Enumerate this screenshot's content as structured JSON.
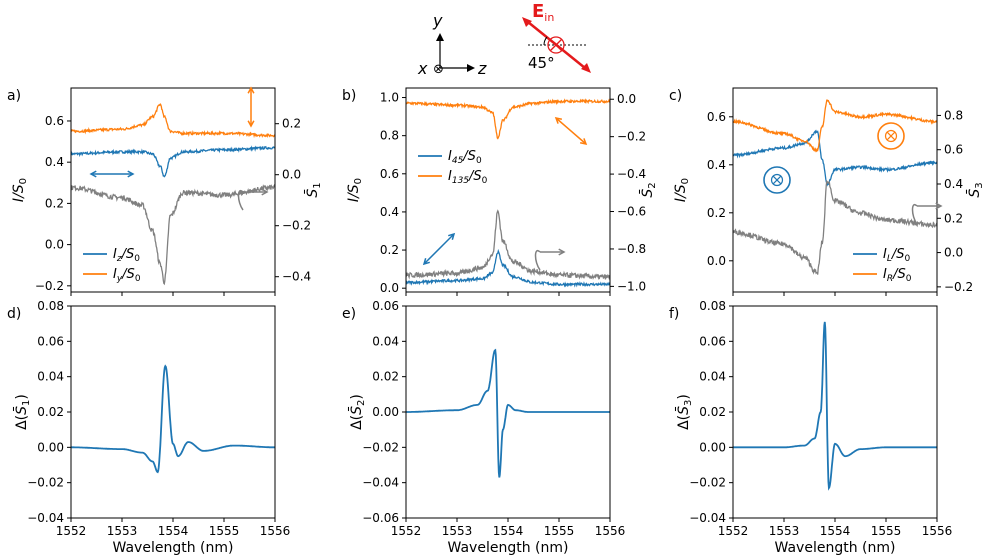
{
  "colors": {
    "blue": "#1f77b4",
    "orange": "#ff7f0e",
    "gray": "#808080",
    "red": "#e41a1c",
    "black": "#000000"
  },
  "header": {
    "y_axis": "y",
    "x_axis": "x",
    "z_axis": "z",
    "x_symbol": "⊗",
    "field_label": "E",
    "field_sub": "in",
    "angle_label": "45°"
  },
  "chart_data": [
    {
      "id": "a",
      "panel_label": "a)",
      "type": "line",
      "x": [
        1552,
        1553,
        1553.4,
        1553.6,
        1553.75,
        1553.83,
        1553.95,
        1554.2,
        1555,
        1556
      ],
      "xlim": [
        1552,
        1556
      ],
      "ylim": [
        -0.23,
        0.76
      ],
      "ylabel": "I/S0",
      "yticks": [
        "−0.2",
        "0.0",
        "0.2",
        "0.4",
        "0.6"
      ],
      "ytick_values": [
        -0.2,
        0,
        0.2,
        0.4,
        0.6
      ],
      "y2lim": [
        -0.46,
        0.34
      ],
      "y2label": "S̄1",
      "y2ticks": [
        "−0.4",
        "−0.2",
        "0.0",
        "0.2"
      ],
      "y2tick_values": [
        -0.4,
        -0.2,
        0,
        0.2
      ],
      "series": [
        {
          "name": "Iz/S0",
          "color": "blue",
          "axis": "left",
          "values": [
            0.44,
            0.45,
            0.45,
            0.44,
            0.38,
            0.33,
            0.42,
            0.45,
            0.46,
            0.47
          ]
        },
        {
          "name": "Iy/S0",
          "color": "orange",
          "axis": "left",
          "values": [
            0.55,
            0.56,
            0.58,
            0.62,
            0.68,
            0.62,
            0.55,
            0.54,
            0.54,
            0.53
          ]
        },
        {
          "name": "S̄1",
          "color": "gray",
          "axis": "right",
          "values": [
            -0.05,
            -0.09,
            -0.12,
            -0.22,
            -0.35,
            -0.42,
            -0.16,
            -0.07,
            -0.08,
            -0.05
          ]
        }
      ],
      "legend": [
        {
          "main": "I",
          "sub": "z",
          "tail": "/S",
          "sub2": "0",
          "color": "blue"
        },
        {
          "main": "I",
          "sub": "y",
          "tail": "/S",
          "sub2": "0",
          "color": "orange"
        }
      ]
    },
    {
      "id": "b",
      "panel_label": "b)",
      "type": "line",
      "x": [
        1552,
        1553,
        1553.5,
        1553.7,
        1553.8,
        1553.9,
        1554.1,
        1554.5,
        1555,
        1556
      ],
      "xlim": [
        1552,
        1556
      ],
      "ylim": [
        -0.02,
        1.05
      ],
      "ylabel": "I/S0",
      "yticks": [
        "0.0",
        "0.2",
        "0.4",
        "0.6",
        "0.8",
        "1.0"
      ],
      "ytick_values": [
        0,
        0.2,
        0.4,
        0.6,
        0.8,
        1.0
      ],
      "y2lim": [
        -1.03,
        0.06
      ],
      "y2label": "S̄2",
      "y2ticks": [
        "−1.0",
        "−0.8",
        "−0.6",
        "−0.4",
        "−0.2",
        "0.0"
      ],
      "y2tick_values": [
        -1,
        -0.8,
        -0.6,
        -0.4,
        -0.2,
        0
      ],
      "series": [
        {
          "name": "I45/S0",
          "color": "blue",
          "axis": "left",
          "values": [
            0.03,
            0.04,
            0.05,
            0.08,
            0.19,
            0.12,
            0.06,
            0.03,
            0.02,
            0.02
          ]
        },
        {
          "name": "I135/S0",
          "color": "orange",
          "axis": "left",
          "values": [
            0.97,
            0.96,
            0.95,
            0.92,
            0.79,
            0.88,
            0.95,
            0.97,
            0.98,
            0.98
          ]
        },
        {
          "name": "S̄2",
          "color": "gray",
          "axis": "right",
          "values": [
            -0.94,
            -0.93,
            -0.9,
            -0.83,
            -0.6,
            -0.76,
            -0.87,
            -0.92,
            -0.94,
            -0.95
          ]
        }
      ],
      "legend": [
        {
          "main": "I",
          "sub": "45",
          "tail": "/S",
          "sub2": "0",
          "color": "blue"
        },
        {
          "main": "I",
          "sub": "135",
          "tail": "/S",
          "sub2": "0",
          "color": "orange"
        }
      ]
    },
    {
      "id": "c",
      "panel_label": "c)",
      "type": "line",
      "x": [
        1552,
        1553,
        1553.4,
        1553.65,
        1553.75,
        1553.85,
        1554,
        1554.5,
        1555,
        1556
      ],
      "xlim": [
        1552,
        1556
      ],
      "ylim": [
        -0.13,
        0.72
      ],
      "ylabel": "I/S0",
      "yticks": [
        "0.0",
        "0.2",
        "0.4",
        "0.6"
      ],
      "ytick_values": [
        0,
        0.2,
        0.4,
        0.6
      ],
      "y2lim": [
        -0.23,
        0.96
      ],
      "y2label": "S̄3",
      "y2ticks": [
        "−0.2",
        "0.0",
        "0.2",
        "0.4",
        "0.6",
        "0.8"
      ],
      "y2tick_values": [
        -0.2,
        0,
        0.2,
        0.4,
        0.6,
        0.8
      ],
      "series": [
        {
          "name": "IL/S0",
          "color": "blue",
          "axis": "left",
          "values": [
            0.44,
            0.47,
            0.49,
            0.54,
            0.42,
            0.32,
            0.38,
            0.39,
            0.38,
            0.41
          ]
        },
        {
          "name": "IR/S0",
          "color": "orange",
          "axis": "left",
          "values": [
            0.58,
            0.53,
            0.5,
            0.46,
            0.56,
            0.67,
            0.62,
            0.6,
            0.61,
            0.58
          ]
        },
        {
          "name": "S̄3",
          "color": "gray",
          "axis": "right",
          "values": [
            0.12,
            0.05,
            -0.03,
            -0.12,
            0.06,
            0.42,
            0.3,
            0.23,
            0.19,
            0.16
          ]
        }
      ],
      "legend": [
        {
          "main": "I",
          "sub": "L",
          "tail": "/S",
          "sub2": "0",
          "color": "blue"
        },
        {
          "main": "I",
          "sub": "R",
          "tail": "/S",
          "sub2": "0",
          "color": "orange"
        }
      ]
    },
    {
      "id": "d",
      "panel_label": "d)",
      "type": "line",
      "x": [
        1552,
        1553,
        1553.4,
        1553.6,
        1553.7,
        1553.85,
        1554,
        1554.1,
        1554.3,
        1554.6,
        1555.2,
        1556
      ],
      "xlim": [
        1552,
        1556
      ],
      "ylim": [
        -0.04,
        0.08
      ],
      "xticks": [
        "1552",
        "1553",
        "1554",
        "1555",
        "1556"
      ],
      "xtick_values": [
        1552,
        1553,
        1554,
        1555,
        1556
      ],
      "xlabel": "Wavelength (nm)",
      "ylabel": "Δ(S̄1)",
      "yticks": [
        "−0.04",
        "−0.02",
        "0.00",
        "0.02",
        "0.04",
        "0.06",
        "0.08"
      ],
      "ytick_values": [
        -0.04,
        -0.02,
        0,
        0.02,
        0.04,
        0.06,
        0.08
      ],
      "series": [
        {
          "name": "Δ(S̄1)",
          "color": "blue",
          "values": [
            0,
            -0.001,
            -0.003,
            -0.008,
            -0.014,
            0.046,
            0.002,
            -0.005,
            0.003,
            -0.002,
            0.001,
            0
          ]
        }
      ]
    },
    {
      "id": "e",
      "panel_label": "e)",
      "type": "line",
      "x": [
        1552,
        1553,
        1553.4,
        1553.6,
        1553.75,
        1553.83,
        1553.9,
        1554,
        1554.15,
        1554.4,
        1555,
        1556
      ],
      "xlim": [
        1552,
        1556
      ],
      "ylim": [
        -0.06,
        0.06
      ],
      "xticks": [
        "1552",
        "1553",
        "1554",
        "1555",
        "1556"
      ],
      "xtick_values": [
        1552,
        1553,
        1554,
        1555,
        1556
      ],
      "xlabel": "Wavelength (nm)",
      "ylabel": "Δ(S̄2)",
      "yticks": [
        "−0.06",
        "−0.04",
        "−0.02",
        "0.00",
        "0.02",
        "0.04",
        "0.06"
      ],
      "ytick_values": [
        -0.06,
        -0.04,
        -0.02,
        0,
        0.02,
        0.04,
        0.06
      ],
      "series": [
        {
          "name": "Δ(S̄2)",
          "color": "blue",
          "values": [
            0,
            0.001,
            0.004,
            0.012,
            0.035,
            -0.037,
            -0.01,
            0.004,
            0.001,
            0,
            0,
            0
          ]
        }
      ]
    },
    {
      "id": "f",
      "panel_label": "f)",
      "type": "line",
      "x": [
        1552,
        1553,
        1553.4,
        1553.6,
        1553.72,
        1553.8,
        1553.88,
        1554,
        1554.2,
        1554.5,
        1555,
        1556
      ],
      "xlim": [
        1552,
        1556
      ],
      "ylim": [
        -0.04,
        0.08
      ],
      "xticks": [
        "1552",
        "1553",
        "1554",
        "1555",
        "1556"
      ],
      "xtick_values": [
        1552,
        1553,
        1554,
        1555,
        1556
      ],
      "xlabel": "Wavelength (nm)",
      "ylabel": "Δ(S̄3)",
      "yticks": [
        "−0.04",
        "−0.02",
        "0.00",
        "0.02",
        "0.04",
        "0.06",
        "0.08"
      ],
      "ytick_values": [
        -0.04,
        -0.02,
        0,
        0.02,
        0.04,
        0.06,
        0.08
      ],
      "series": [
        {
          "name": "Δ(S̄3)",
          "color": "blue",
          "values": [
            0,
            0,
            0.001,
            0.005,
            0.02,
            0.071,
            -0.023,
            0.002,
            -0.005,
            -0.001,
            0,
            0
          ]
        }
      ]
    }
  ]
}
